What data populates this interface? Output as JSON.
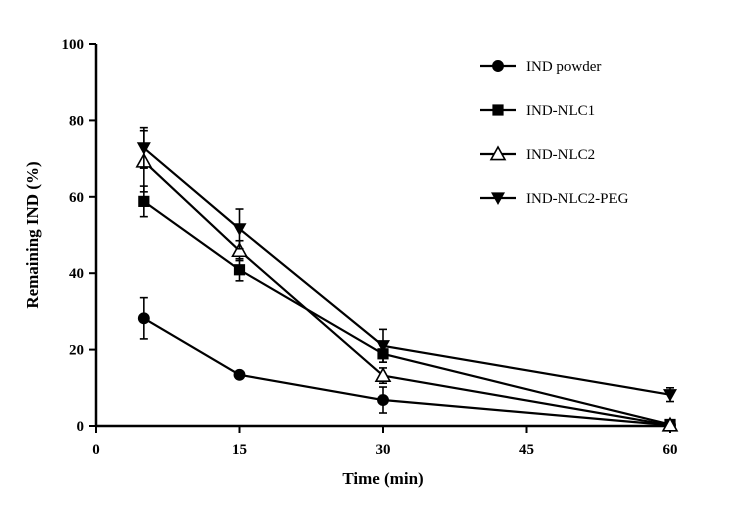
{
  "chart_data": {
    "type": "line",
    "xlabel": "Time (min)",
    "ylabel": "Remaining IND (%)",
    "xlim": [
      0,
      60
    ],
    "ylim": [
      0,
      100
    ],
    "xticks": [
      0,
      15,
      30,
      45,
      60
    ],
    "yticks": [
      0,
      20,
      40,
      60,
      80,
      100
    ],
    "grid": false,
    "legend_position": "top-right",
    "x": [
      5,
      15,
      30,
      60
    ],
    "series": [
      {
        "name": "IND powder",
        "marker": "circle",
        "values": [
          28.2,
          13.4,
          6.8,
          0.2
        ],
        "errors": [
          5.4,
          0.6,
          3.4,
          0.4
        ]
      },
      {
        "name": "IND-NLC1",
        "marker": "square",
        "values": [
          58.8,
          40.9,
          18.9,
          0.4
        ],
        "errors": [
          4.0,
          2.9,
          2.2,
          0.5
        ]
      },
      {
        "name": "IND-NLC2",
        "marker": "triangle-up-open",
        "values": [
          69.3,
          45.9,
          13.2,
          0.2
        ],
        "errors": [
          8.0,
          2.6,
          2.0,
          0.3
        ]
      },
      {
        "name": "IND-NLC2-PEG",
        "marker": "triangle-down",
        "values": [
          72.8,
          51.6,
          21.0,
          8.2
        ],
        "errors": [
          5.3,
          5.2,
          4.3,
          1.8
        ]
      }
    ]
  }
}
